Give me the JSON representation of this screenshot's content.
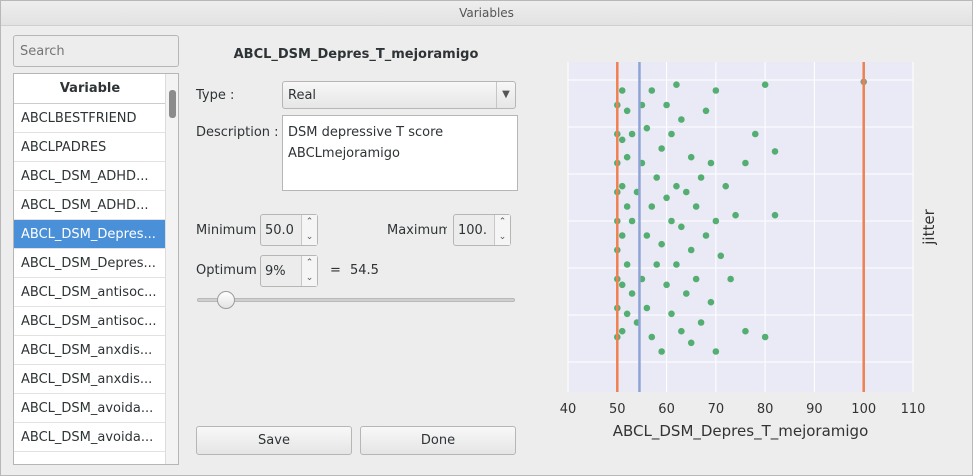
{
  "window": {
    "title": "Variables"
  },
  "search": {
    "placeholder": "Search"
  },
  "variable_list": {
    "header": "Variable",
    "items": [
      "ABCLBESTFRIEND",
      "ABCLPADRES",
      "ABCL_DSM_ADHD...",
      "ABCL_DSM_ADHD...",
      "ABCL_DSM_Depres...",
      "ABCL_DSM_Depres...",
      "ABCL_DSM_antisoc...",
      "ABCL_DSM_antisoc...",
      "ABCL_DSM_anxdis...",
      "ABCL_DSM_anxdis...",
      "ABCL_DSM_avoida...",
      "ABCL_DSM_avoida..."
    ],
    "selected_index": 4
  },
  "detail": {
    "variable_name": "ABCL_DSM_Depres_T_mejoramigo",
    "type_label": "Type :",
    "type_value": "Real",
    "description_label": "Description :",
    "description_line1": "DSM depressive T score",
    "description_line2": "ABCLmejoramigo",
    "minimum_label": "Minimum",
    "minimum_value": "50.0",
    "maximum_label": "Maximum",
    "maximum_value": "100.",
    "optimum_label": "Optimum",
    "optimum_value": "9%",
    "equals": "=",
    "optimum_result": "54.5",
    "slider_fraction": 0.09,
    "save_label": "Save",
    "done_label": "Done"
  },
  "chart_data": {
    "type": "scatter",
    "xlabel": "ABCL_DSM_Depres_T_mejoramigo",
    "ylabel": "jitter",
    "xlim": [
      40,
      110
    ],
    "x_ticks": [
      40,
      50,
      60,
      70,
      80,
      90,
      100,
      110
    ],
    "grid": true,
    "colors": {
      "points": "#3aa35a",
      "min_max_lines": "#f08050",
      "optimum_line": "#8fa4d4",
      "background": "#e9eaf6"
    },
    "vertical_lines": [
      {
        "x": 50,
        "role": "minimum"
      },
      {
        "x": 54.5,
        "role": "optimum"
      },
      {
        "x": 100,
        "role": "maximum"
      }
    ],
    "points": [
      [
        50,
        0.1
      ],
      [
        50,
        0.2
      ],
      [
        50,
        0.3
      ],
      [
        50,
        0.4
      ],
      [
        50,
        0.5
      ],
      [
        50,
        0.6
      ],
      [
        50,
        0.7
      ],
      [
        50,
        0.8
      ],
      [
        50,
        0.9
      ],
      [
        51,
        0.12
      ],
      [
        51,
        0.28
      ],
      [
        51,
        0.45
      ],
      [
        51,
        0.62
      ],
      [
        51,
        0.78
      ],
      [
        51,
        0.95
      ],
      [
        52,
        0.18
      ],
      [
        52,
        0.35
      ],
      [
        52,
        0.55
      ],
      [
        52,
        0.72
      ],
      [
        52,
        0.88
      ],
      [
        53,
        0.25
      ],
      [
        53,
        0.5
      ],
      [
        53,
        0.8
      ],
      [
        54,
        0.15
      ],
      [
        54,
        0.6
      ],
      [
        55,
        0.3
      ],
      [
        55,
        0.7
      ],
      [
        55,
        0.9
      ],
      [
        56,
        0.2
      ],
      [
        56,
        0.45
      ],
      [
        56,
        0.82
      ],
      [
        57,
        0.1
      ],
      [
        57,
        0.55
      ],
      [
        57,
        0.95
      ],
      [
        58,
        0.35
      ],
      [
        58,
        0.65
      ],
      [
        59,
        0.05
      ],
      [
        59,
        0.42
      ],
      [
        59,
        0.75
      ],
      [
        60,
        0.28
      ],
      [
        60,
        0.58
      ],
      [
        60,
        0.9
      ],
      [
        61,
        0.18
      ],
      [
        61,
        0.5
      ],
      [
        61,
        0.8
      ],
      [
        62,
        0.35
      ],
      [
        62,
        0.62
      ],
      [
        62,
        0.97
      ],
      [
        63,
        0.12
      ],
      [
        63,
        0.48
      ],
      [
        63,
        0.85
      ],
      [
        64,
        0.25
      ],
      [
        64,
        0.6
      ],
      [
        65,
        0.08
      ],
      [
        65,
        0.4
      ],
      [
        65,
        0.72
      ],
      [
        66,
        0.3
      ],
      [
        66,
        0.55
      ],
      [
        67,
        0.15
      ],
      [
        67,
        0.65
      ],
      [
        68,
        0.45
      ],
      [
        68,
        0.88
      ],
      [
        69,
        0.22
      ],
      [
        69,
        0.7
      ],
      [
        70,
        0.05
      ],
      [
        70,
        0.5
      ],
      [
        70,
        0.95
      ],
      [
        71,
        0.38
      ],
      [
        72,
        0.62
      ],
      [
        73,
        0.3
      ],
      [
        74,
        0.52
      ],
      [
        76,
        0.12
      ],
      [
        76,
        0.7
      ],
      [
        78,
        0.8
      ],
      [
        80,
        0.97
      ],
      [
        80,
        0.1
      ],
      [
        82,
        0.52
      ],
      [
        82,
        0.74
      ],
      [
        100,
        0.98
      ]
    ]
  }
}
